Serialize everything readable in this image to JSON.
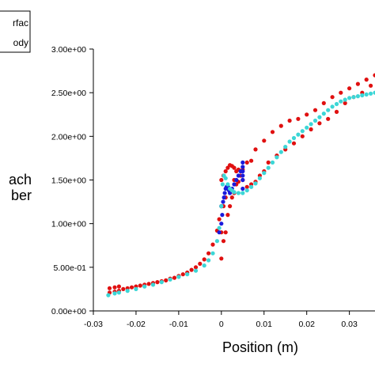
{
  "chart_data": {
    "type": "scatter",
    "xlabel": "Position (m)",
    "ylabel_lines": [
      "ach",
      "ber"
    ],
    "legend": [
      "rfac",
      "ody"
    ],
    "xlim": [
      -0.03,
      0.036
    ],
    "ylim": [
      0,
      3
    ],
    "x_ticks": [
      -0.03,
      -0.02,
      -0.01,
      0,
      0.01,
      0.02,
      0.03
    ],
    "x_tick_labels": [
      "-0.03",
      "-0.02",
      "-0.01",
      "0",
      "0.01",
      "0.02",
      "0.03"
    ],
    "y_ticks": [
      0,
      0.5,
      1,
      1.5,
      2,
      2.5,
      3
    ],
    "y_tick_labels": [
      "0.00e+00",
      "5.00e-01",
      "1.00e+00",
      "1.50e+00",
      "2.00e+00",
      "2.50e+00",
      "3.00e+00"
    ],
    "series": [
      {
        "color": "#e01010",
        "x": [
          -0.0262,
          -0.0262,
          -0.025,
          -0.025,
          -0.024,
          -0.024,
          -0.023,
          -0.022,
          -0.021,
          -0.02,
          -0.019,
          -0.018,
          -0.017,
          -0.016,
          -0.015,
          -0.014,
          -0.013,
          -0.012,
          -0.011,
          -0.01,
          -0.009,
          -0.008,
          -0.007,
          -0.006,
          -0.005,
          -0.004,
          -0.003,
          -0.002,
          -0.001,
          -0.0005,
          0,
          0,
          0,
          0,
          0.0005,
          0.0005,
          0.0005,
          0.001,
          0.001,
          0.001,
          0.0015,
          0.0015,
          0.002,
          0.002,
          0.0025,
          0.0025,
          0.003,
          0.003,
          0.003,
          0.0035,
          0.0035,
          0.004,
          0.004,
          0.0045,
          0.005,
          0.005,
          0.006,
          0.006,
          0.007,
          0.007,
          0.008,
          0.008,
          0.009,
          0.01,
          0.01,
          0.011,
          0.012,
          0.013,
          0.014,
          0.015,
          0.016,
          0.017,
          0.018,
          0.019,
          0.02,
          0.021,
          0.022,
          0.023,
          0.024,
          0.025,
          0.026,
          0.027,
          0.028,
          0.029,
          0.03,
          0.031,
          0.032,
          0.033,
          0.034,
          0.035,
          0.036
        ],
        "y": [
          0.21,
          0.26,
          0.22,
          0.27,
          0.23,
          0.28,
          0.25,
          0.26,
          0.27,
          0.28,
          0.29,
          0.3,
          0.31,
          0.32,
          0.33,
          0.34,
          0.35,
          0.37,
          0.38,
          0.4,
          0.42,
          0.44,
          0.47,
          0.5,
          0.54,
          0.59,
          0.66,
          0.76,
          0.92,
          1.05,
          0.6,
          0.9,
          1.2,
          1.5,
          0.8,
          1.2,
          1.55,
          0.9,
          1.3,
          1.6,
          1.1,
          1.64,
          1.2,
          1.67,
          1.3,
          1.66,
          1.35,
          1.5,
          1.64,
          1.45,
          1.6,
          1.48,
          1.62,
          1.55,
          1.5,
          1.62,
          1.42,
          1.7,
          1.45,
          1.72,
          1.48,
          1.85,
          1.55,
          1.6,
          1.95,
          1.7,
          2.05,
          1.78,
          2.12,
          1.85,
          2.18,
          1.92,
          2.2,
          2.0,
          2.25,
          2.08,
          2.3,
          2.15,
          2.38,
          2.2,
          2.45,
          2.28,
          2.5,
          2.38,
          2.55,
          2.45,
          2.6,
          2.5,
          2.65,
          2.58,
          2.7
        ]
      },
      {
        "color": "#1a1adc",
        "x": [
          -0.0005,
          0,
          0,
          0.0002,
          0.0004,
          0.0006,
          0.0008,
          0.001,
          0.0012,
          0.0014,
          0.0016,
          0.0018,
          0.002,
          0.0025,
          0.003,
          0.0035,
          0.004,
          0.0045,
          0.005,
          0.005,
          0.005,
          0.005,
          0.005,
          0.005
        ],
        "y": [
          0.9,
          1.0,
          1.2,
          1.1,
          1.25,
          1.3,
          1.35,
          1.4,
          1.42,
          1.43,
          1.42,
          1.38,
          1.35,
          1.4,
          1.45,
          1.5,
          1.55,
          1.6,
          1.4,
          1.5,
          1.55,
          1.6,
          1.65,
          1.7
        ]
      },
      {
        "color": "#3cd6d6",
        "x": [
          -0.0265,
          -0.025,
          -0.024,
          -0.022,
          -0.02,
          -0.018,
          -0.016,
          -0.014,
          -0.012,
          -0.01,
          -0.008,
          -0.006,
          -0.004,
          -0.003,
          -0.002,
          -0.001,
          -0.0005,
          0,
          0.0003,
          0.0006,
          0.001,
          0.0015,
          0.002,
          0.0025,
          0.003,
          0.004,
          0.005,
          0.006,
          0.007,
          0.008,
          0.009,
          0.01,
          0.011,
          0.012,
          0.013,
          0.014,
          0.015,
          0.016,
          0.017,
          0.018,
          0.019,
          0.02,
          0.021,
          0.022,
          0.023,
          0.024,
          0.025,
          0.026,
          0.027,
          0.028,
          0.029,
          0.03,
          0.031,
          0.032,
          0.033,
          0.034,
          0.035,
          0.036
        ],
        "y": [
          0.18,
          0.2,
          0.21,
          0.23,
          0.25,
          0.28,
          0.3,
          0.33,
          0.36,
          0.39,
          0.42,
          0.46,
          0.52,
          0.58,
          0.66,
          0.8,
          0.95,
          1.2,
          1.45,
          1.55,
          1.52,
          1.45,
          1.4,
          1.38,
          1.36,
          1.35,
          1.35,
          1.38,
          1.42,
          1.46,
          1.52,
          1.58,
          1.64,
          1.7,
          1.76,
          1.82,
          1.88,
          1.94,
          1.98,
          2.02,
          2.06,
          2.1,
          2.14,
          2.18,
          2.22,
          2.26,
          2.3,
          2.34,
          2.37,
          2.4,
          2.42,
          2.44,
          2.45,
          2.46,
          2.47,
          2.48,
          2.49,
          2.5
        ]
      }
    ]
  }
}
